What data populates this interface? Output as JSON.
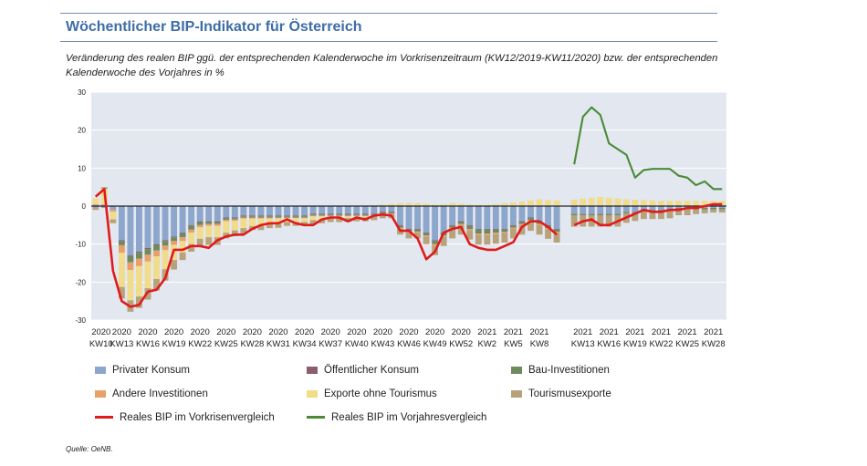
{
  "title": "Wöchentlicher BIP-Indikator für Österreich",
  "subtitle": "Veränderung des realen BIP ggü. der entsprechenden Kalenderwoche im Vorkrisenzeitraum (KW12/2019-KW11/2020) bzw. der entsprechenden Kalenderwoche des Vorjahres in %",
  "source": "Quelle: OeNB.",
  "colors": {
    "privater_konsum": "#8da6cc",
    "oeffentlicher_konsum": "#8b5d6e",
    "bau": "#6e8b5e",
    "andere": "#e8a06a",
    "exporte": "#f1dc8c",
    "tourismus": "#b8a27c",
    "red": "#e01b1b",
    "green": "#4a8a35",
    "plot_bg": "#e2e7f0",
    "grid": "#ffffff"
  },
  "legend": [
    {
      "key": "privater_konsum",
      "label": "Privater Konsum",
      "kind": "bar"
    },
    {
      "key": "oeffentlicher_konsum",
      "label": "Öffentlicher Konsum",
      "kind": "bar"
    },
    {
      "key": "bau",
      "label": "Bau-Investitionen",
      "kind": "bar"
    },
    {
      "key": "andere",
      "label": "Andere Investitionen",
      "kind": "bar"
    },
    {
      "key": "exporte",
      "label": "Exporte ohne Tourismus",
      "kind": "bar"
    },
    {
      "key": "tourismus",
      "label": "Tourismusexporte",
      "kind": "bar"
    },
    {
      "key": "red",
      "label": "Reales BIP im Vorkrisenvergleich",
      "kind": "line"
    },
    {
      "key": "green",
      "label": "Reales BIP im Vorjahresvergleich",
      "kind": "line"
    }
  ],
  "chart_data": {
    "type": "bar",
    "title": "Wöchentlicher BIP-Indikator für Österreich",
    "ylim": [
      -30,
      30
    ],
    "yticks": [
      -30,
      -20,
      -10,
      0,
      10,
      20,
      30
    ],
    "grid": true,
    "legend_position": "bottom",
    "xtick_labels": [
      {
        "year": "2020",
        "week": "KW10",
        "index": 0
      },
      {
        "year": "2020",
        "week": "KW13",
        "index": 3
      },
      {
        "year": "2020",
        "week": "KW16",
        "index": 6
      },
      {
        "year": "2020",
        "week": "KW19",
        "index": 9
      },
      {
        "year": "2020",
        "week": "KW22",
        "index": 12
      },
      {
        "year": "2020",
        "week": "KW25",
        "index": 15
      },
      {
        "year": "2020",
        "week": "KW28",
        "index": 18
      },
      {
        "year": "2020",
        "week": "KW31",
        "index": 21
      },
      {
        "year": "2020",
        "week": "KW34",
        "index": 24
      },
      {
        "year": "2020",
        "week": "KW37",
        "index": 27
      },
      {
        "year": "2020",
        "week": "KW40",
        "index": 30
      },
      {
        "year": "2020",
        "week": "KW43",
        "index": 33
      },
      {
        "year": "2020",
        "week": "KW46",
        "index": 36
      },
      {
        "year": "2020",
        "week": "KW49",
        "index": 39
      },
      {
        "year": "2020",
        "week": "KW52",
        "index": 42
      },
      {
        "year": "2021",
        "week": "KW2",
        "index": 45
      },
      {
        "year": "2021",
        "week": "KW5",
        "index": 48
      },
      {
        "year": "2021",
        "week": "KW8",
        "index": 51
      },
      {
        "year": "2021",
        "week": "KW13",
        "index": 56
      },
      {
        "year": "2021",
        "week": "KW16",
        "index": 59
      },
      {
        "year": "2021",
        "week": "KW19",
        "index": 62
      },
      {
        "year": "2021",
        "week": "KW22",
        "index": 65
      },
      {
        "year": "2021",
        "week": "KW25",
        "index": 68
      },
      {
        "year": "2021",
        "week": "KW28",
        "index": 71
      }
    ],
    "period_count": 73,
    "gap_index": 54,
    "series": [
      {
        "name": "Privater Konsum",
        "key": "privater_konsum",
        "kind": "bar",
        "values": [
          -0.5,
          -0.5,
          -1,
          -9,
          -13,
          -12,
          -11,
          -10,
          -9,
          -8,
          -7,
          -5,
          -4,
          -4,
          -4,
          -3,
          -3,
          -2.5,
          -2.5,
          -2.5,
          -2.5,
          -2.5,
          -2.5,
          -2.5,
          -2.5,
          -2,
          -2,
          -2,
          -2,
          -2,
          -2,
          -2,
          -2,
          -1.5,
          -1.5,
          -5,
          -6,
          -6,
          -7,
          -9,
          -7,
          -5,
          -4,
          -5,
          -6,
          -6,
          -6,
          -6,
          -5,
          -4,
          -3,
          -4,
          -5,
          -6,
          null,
          -2,
          -2,
          -2,
          -2,
          -2,
          -2,
          -1.5,
          -1.5,
          -1,
          -1,
          -1,
          -1,
          -0.5,
          -0.5,
          -0.5,
          -0.5,
          -0.5,
          -0.5
        ]
      },
      {
        "name": "Öffentlicher Konsum",
        "key": "oeffentlicher_konsum",
        "kind": "bar",
        "values": [
          0,
          0,
          0,
          -0.3,
          -0.3,
          -0.3,
          -0.3,
          -0.2,
          -0.2,
          -0.2,
          -0.2,
          -0.2,
          -0.2,
          -0.2,
          -0.2,
          -0.2,
          -0.2,
          -0.2,
          -0.2,
          -0.2,
          -0.2,
          -0.2,
          -0.2,
          -0.2,
          -0.2,
          -0.2,
          -0.2,
          -0.2,
          -0.2,
          -0.2,
          -0.2,
          -0.2,
          -0.2,
          -0.2,
          -0.2,
          -0.2,
          -0.2,
          -0.2,
          -0.2,
          -0.2,
          -0.2,
          -0.2,
          -0.2,
          -0.2,
          -0.2,
          -0.2,
          -0.2,
          -0.2,
          -0.2,
          -0.2,
          -0.2,
          -0.2,
          -0.2,
          -0.2,
          null,
          -0.1,
          -0.1,
          -0.1,
          -0.1,
          -0.1,
          -0.1,
          -0.1,
          -0.1,
          -0.1,
          -0.1,
          -0.1,
          -0.1,
          -0.1,
          -0.1,
          -0.1,
          -0.1,
          -0.1,
          -0.1
        ]
      },
      {
        "name": "Bau-Investitionen",
        "key": "bau",
        "kind": "bar",
        "values": [
          0,
          0,
          0,
          -1,
          -1.5,
          -1.5,
          -1.5,
          -1.5,
          -1.2,
          -1,
          -1,
          -1,
          -0.8,
          -0.5,
          -0.5,
          -0.4,
          -0.3,
          -0.3,
          -0.3,
          -0.3,
          -0.3,
          -0.3,
          -0.3,
          -0.3,
          -0.3,
          -0.3,
          -0.3,
          -0.3,
          -0.3,
          -0.3,
          -0.3,
          -0.3,
          -0.3,
          -0.3,
          -0.3,
          -0.5,
          -0.5,
          -0.5,
          -0.5,
          -0.8,
          -0.5,
          -0.5,
          -0.5,
          -0.8,
          -1,
          -1,
          -0.8,
          -0.6,
          -0.5,
          -0.5,
          -0.5,
          -0.5,
          -0.6,
          -0.6,
          null,
          -0.3,
          -0.3,
          -0.3,
          -0.3,
          -0.3,
          -0.3,
          -0.3,
          -0.3,
          -0.3,
          -0.3,
          -0.3,
          -0.3,
          -0.3,
          -0.3,
          -0.3,
          -0.3,
          -0.3,
          -0.3
        ]
      },
      {
        "name": "Andere Investitionen",
        "key": "andere",
        "kind": "bar",
        "values": [
          0.5,
          0.5,
          -0.5,
          -2,
          -2,
          -2,
          -1.8,
          -1.5,
          -1.2,
          -1,
          -1,
          -0.8,
          -0.6,
          -0.5,
          -0.5,
          -0.4,
          -0.4,
          -0.3,
          -0.3,
          -0.3,
          -0.3,
          -0.2,
          -0.2,
          -0.2,
          -0.2,
          -0.2,
          -0.2,
          -0.2,
          -0.2,
          -0.2,
          -0.2,
          -0.2,
          -0.2,
          -0.2,
          -0.2,
          -0.3,
          -0.3,
          -0.3,
          -0.3,
          -0.4,
          -0.3,
          -0.3,
          -0.3,
          -0.3,
          -0.4,
          -0.4,
          -0.4,
          -0.3,
          -0.3,
          -0.3,
          -0.3,
          -0.3,
          -0.3,
          -0.3,
          null,
          0.2,
          0.2,
          0.2,
          0.2,
          0.2,
          0.2,
          0.2,
          0.2,
          0.2,
          0.2,
          0.2,
          0.2,
          0.2,
          0.2,
          0.2,
          0.2,
          0.2,
          0.2
        ]
      },
      {
        "name": "Exporte ohne Tourismus",
        "key": "exporte",
        "kind": "bar",
        "values": [
          1.5,
          4,
          -2,
          -9,
          -8,
          -8,
          -7,
          -6,
          -5,
          -4,
          -3,
          -3,
          -3,
          -3,
          -3,
          -3,
          -2.5,
          -2.5,
          -2,
          -2,
          -1.5,
          -1.5,
          -1,
          -1,
          -1,
          -1,
          -0.8,
          -0.5,
          -0.5,
          -0.4,
          -0.3,
          -0.3,
          0.2,
          0.4,
          0.6,
          0.8,
          0.8,
          0.8,
          0.6,
          0.4,
          0.5,
          0.8,
          0.6,
          0.4,
          0.3,
          0.3,
          0.5,
          0.8,
          1,
          1.2,
          1.5,
          1.8,
          1.6,
          1.5,
          null,
          1.5,
          1.8,
          2,
          2.2,
          2,
          1.8,
          1.6,
          1.5,
          1.4,
          1.3,
          1.2,
          1.2,
          1.2,
          1.2,
          1.2,
          1.2,
          1.2,
          1.2
        ]
      },
      {
        "name": "Tourismusexporte",
        "key": "tourismus",
        "kind": "bar",
        "values": [
          -0.5,
          0.5,
          -1,
          -3,
          -3,
          -3,
          -3,
          -3,
          -3,
          -2.5,
          -2,
          -2,
          -2,
          -2,
          -2,
          -1.5,
          -1.5,
          -1.5,
          -1,
          -1,
          -1,
          -1,
          -1,
          -1,
          -1,
          -1,
          -1,
          -1,
          -1,
          -1,
          -1,
          -1,
          -1,
          -1,
          -1,
          -1.5,
          -1.5,
          -1.5,
          -2,
          -2.5,
          -2.5,
          -2.5,
          -2.5,
          -2.5,
          -2.5,
          -2.5,
          -2.5,
          -2.5,
          -2.5,
          -2.5,
          -2.5,
          -2.5,
          -2.5,
          -2.5,
          null,
          -3,
          -3,
          -3,
          -3,
          -3,
          -3,
          -2.5,
          -2,
          -2,
          -2,
          -2,
          -1.8,
          -1.5,
          -1.5,
          -1.2,
          -1,
          -0.8,
          -0.8
        ]
      },
      {
        "name": "Reales BIP im Vorkrisenvergleich",
        "key": "red",
        "kind": "line",
        "values": [
          2.5,
          4.5,
          -17,
          -25,
          -26.5,
          -26,
          -22.5,
          -22,
          -19,
          -11.5,
          -11.5,
          -10.5,
          -10.5,
          -11,
          -9,
          -8,
          -7.5,
          -7.5,
          -6,
          -5,
          -4.5,
          -4.5,
          -3.5,
          -4.5,
          -5,
          -5,
          -3.5,
          -3,
          -3,
          -4,
          -3,
          -3.5,
          -2.5,
          -2.2,
          -2.5,
          -6.5,
          -6.5,
          -8.5,
          -14,
          -12,
          -7,
          -6,
          -5.5,
          -10,
          -11,
          -11.5,
          -11.5,
          -10.5,
          -9.5,
          -5.5,
          -4,
          -4,
          -5.5,
          -7.5,
          null,
          -5,
          -4,
          -3.5,
          -5,
          -5,
          -4,
          -3,
          -2,
          -1,
          -1.5,
          -1.5,
          -1,
          -1,
          -0.5,
          -0.5,
          0,
          0.5,
          0.5
        ]
      },
      {
        "name": "Reales BIP im Vorjahresvergleich",
        "key": "green",
        "kind": "line",
        "values": [
          null,
          null,
          null,
          null,
          null,
          null,
          null,
          null,
          null,
          null,
          null,
          null,
          null,
          null,
          null,
          null,
          null,
          null,
          null,
          null,
          null,
          null,
          null,
          null,
          null,
          null,
          null,
          null,
          null,
          null,
          null,
          null,
          null,
          null,
          null,
          null,
          null,
          null,
          null,
          null,
          null,
          null,
          null,
          null,
          null,
          null,
          null,
          null,
          null,
          null,
          null,
          null,
          null,
          null,
          null,
          11,
          23.5,
          26,
          24,
          16.5,
          15,
          13.5,
          7.5,
          9.5,
          9.8,
          9.8,
          9.8,
          8,
          7.5,
          5.5,
          6.5,
          4.5,
          4.5
        ]
      }
    ]
  }
}
